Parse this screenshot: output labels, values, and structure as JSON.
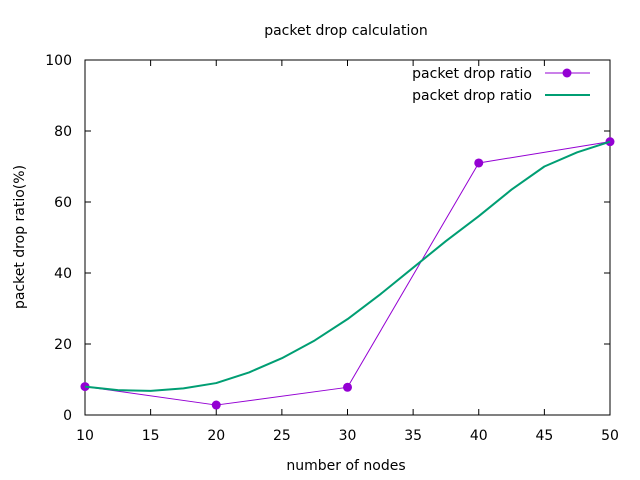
{
  "chart_data": {
    "type": "line",
    "title": "packet drop calculation",
    "xlabel": "number of nodes",
    "ylabel": "packet drop ratio(%)",
    "xlim": [
      10,
      50
    ],
    "ylim": [
      0,
      100
    ],
    "xticks": [
      10,
      15,
      20,
      25,
      30,
      35,
      40,
      45,
      50
    ],
    "yticks": [
      0,
      20,
      40,
      60,
      80,
      100
    ],
    "grid": false,
    "legend_position": "top-right",
    "series": [
      {
        "name": "packet drop ratio",
        "style": "line-with-points",
        "color": "#9400d3",
        "x": [
          10,
          20,
          30,
          40,
          50
        ],
        "y": [
          8,
          2.8,
          7.8,
          71,
          77
        ]
      },
      {
        "name": "packet drop ratio",
        "style": "smooth-line",
        "color": "#009e73",
        "x": [
          10,
          12.5,
          15,
          17.5,
          20,
          22.5,
          25,
          27.5,
          30,
          32.5,
          35,
          37.5,
          40,
          42.5,
          45,
          47.5,
          50
        ],
        "y": [
          8,
          7,
          6.8,
          7.5,
          9,
          12,
          16,
          21,
          27,
          34,
          41.5,
          49,
          56,
          63.5,
          70,
          74,
          77
        ]
      }
    ]
  }
}
